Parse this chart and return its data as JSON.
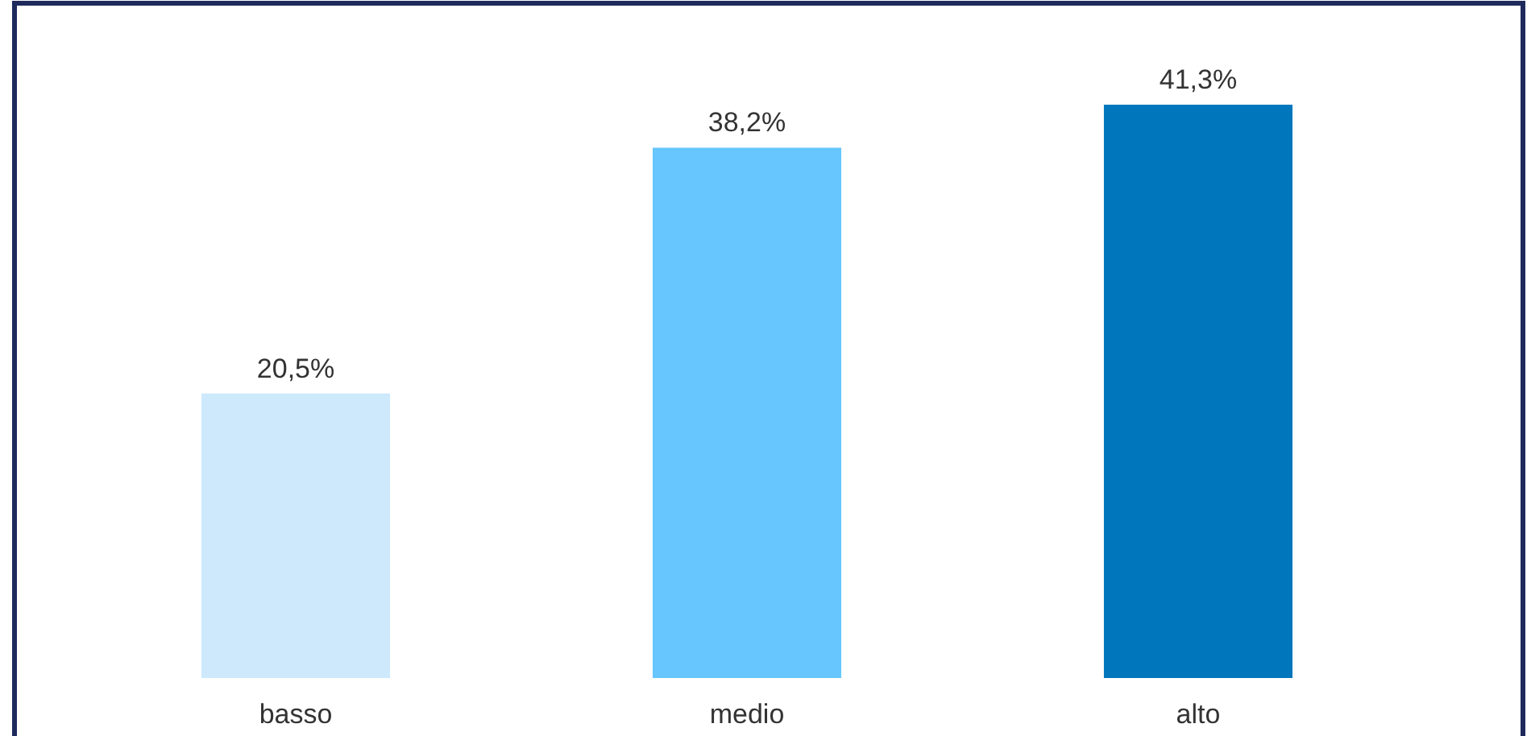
{
  "chart_data": {
    "type": "bar",
    "categories": [
      "basso",
      "medio",
      "alto"
    ],
    "values": [
      20.5,
      38.2,
      41.3
    ],
    "colors": [
      "#cde9fb",
      "#66c6fd",
      "#0077bd"
    ],
    "value_labels": [
      "20,5%",
      "38,2%",
      "41,3%"
    ]
  }
}
